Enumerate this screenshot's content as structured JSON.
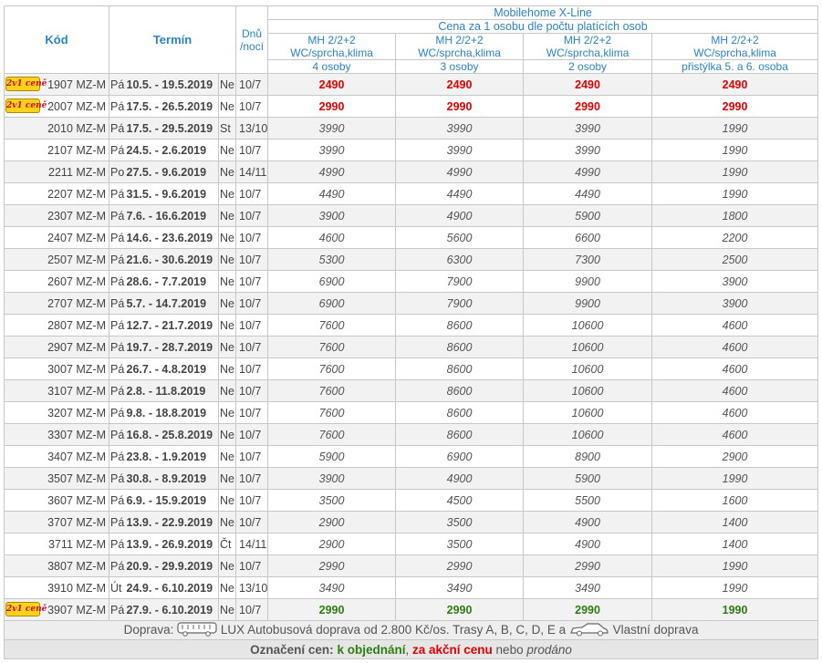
{
  "header": {
    "kod": "Kód",
    "termin": "Termín",
    "dnu_line1": "Dnů",
    "dnu_line2": "/nocí",
    "product": "Mobilehome X-Line",
    "subtitle": "Cena za 1 osobu dle počtu platících osob",
    "columns": [
      {
        "l1": "MH 2/2+2",
        "l2": "WC/sprcha,klima",
        "persons": "4 osoby"
      },
      {
        "l1": "MH 2/2+2",
        "l2": "WC/sprcha,klima",
        "persons": "3 osoby"
      },
      {
        "l1": "MH 2/2+2",
        "l2": "WC/sprcha,klima",
        "persons": "2 osoby"
      },
      {
        "l1": "MH 2/2+2",
        "l2": "WC/sprcha,klima",
        "persons": "přistýlka 5. a 6. osoba"
      }
    ]
  },
  "badge_text": "2v1 ceně",
  "rows": [
    {
      "badge": true,
      "code": "1907 MZ-M",
      "day": "Pá",
      "dates": "10.5. - 19.5.2019",
      "end": "Ne",
      "len": "10/7",
      "status": "red",
      "prices": [
        "2490",
        "2490",
        "2490",
        "2490"
      ]
    },
    {
      "badge": true,
      "code": "2007 MZ-M",
      "day": "Pá",
      "dates": "17.5. - 26.5.2019",
      "end": "Ne",
      "len": "10/7",
      "status": "red",
      "prices": [
        "2990",
        "2990",
        "2990",
        "2990"
      ]
    },
    {
      "badge": false,
      "code": "2010 MZ-M",
      "day": "Pá",
      "dates": "17.5. - 29.5.2019",
      "end": "St",
      "len": "13/10",
      "status": "sold",
      "prices": [
        "3990",
        "3990",
        "3990",
        "1990"
      ]
    },
    {
      "badge": false,
      "code": "2107 MZ-M",
      "day": "Pá",
      "dates": "24.5. - 2.6.2019",
      "end": "Ne",
      "len": "10/7",
      "status": "sold",
      "prices": [
        "3990",
        "3990",
        "3990",
        "1990"
      ]
    },
    {
      "badge": false,
      "code": "2211 MZ-M",
      "day": "Po",
      "dates": "27.5. - 9.6.2019",
      "end": "Ne",
      "len": "14/11",
      "status": "sold",
      "prices": [
        "4990",
        "4990",
        "4990",
        "1990"
      ]
    },
    {
      "badge": false,
      "code": "2207 MZ-M",
      "day": "Pá",
      "dates": "31.5. - 9.6.2019",
      "end": "Ne",
      "len": "10/7",
      "status": "sold",
      "prices": [
        "4490",
        "4490",
        "4490",
        "1990"
      ]
    },
    {
      "badge": false,
      "code": "2307 MZ-M",
      "day": "Pá",
      "dates": "7.6. - 16.6.2019",
      "end": "Ne",
      "len": "10/7",
      "status": "sold",
      "prices": [
        "3900",
        "4900",
        "5900",
        "1800"
      ]
    },
    {
      "badge": false,
      "code": "2407 MZ-M",
      "day": "Pá",
      "dates": "14.6. - 23.6.2019",
      "end": "Ne",
      "len": "10/7",
      "status": "sold",
      "prices": [
        "4600",
        "5600",
        "6600",
        "2200"
      ]
    },
    {
      "badge": false,
      "code": "2507 MZ-M",
      "day": "Pá",
      "dates": "21.6. - 30.6.2019",
      "end": "Ne",
      "len": "10/7",
      "status": "sold",
      "prices": [
        "5300",
        "6300",
        "7300",
        "2500"
      ]
    },
    {
      "badge": false,
      "code": "2607 MZ-M",
      "day": "Pá",
      "dates": "28.6. - 7.7.2019",
      "end": "Ne",
      "len": "10/7",
      "status": "sold",
      "prices": [
        "6900",
        "7900",
        "9900",
        "3900"
      ]
    },
    {
      "badge": false,
      "code": "2707 MZ-M",
      "day": "Pá",
      "dates": "5.7. - 14.7.2019",
      "end": "Ne",
      "len": "10/7",
      "status": "sold",
      "prices": [
        "6900",
        "7900",
        "9900",
        "3900"
      ]
    },
    {
      "badge": false,
      "code": "2807 MZ-M",
      "day": "Pá",
      "dates": "12.7. - 21.7.2019",
      "end": "Ne",
      "len": "10/7",
      "status": "sold",
      "prices": [
        "7600",
        "8600",
        "10600",
        "4600"
      ]
    },
    {
      "badge": false,
      "code": "2907 MZ-M",
      "day": "Pá",
      "dates": "19.7. - 28.7.2019",
      "end": "Ne",
      "len": "10/7",
      "status": "sold",
      "prices": [
        "7600",
        "8600",
        "10600",
        "4600"
      ]
    },
    {
      "badge": false,
      "code": "3007 MZ-M",
      "day": "Pá",
      "dates": "26.7. - 4.8.2019",
      "end": "Ne",
      "len": "10/7",
      "status": "sold",
      "prices": [
        "7600",
        "8600",
        "10600",
        "4600"
      ]
    },
    {
      "badge": false,
      "code": "3107 MZ-M",
      "day": "Pá",
      "dates": "2.8. - 11.8.2019",
      "end": "Ne",
      "len": "10/7",
      "status": "sold",
      "prices": [
        "7600",
        "8600",
        "10600",
        "4600"
      ]
    },
    {
      "badge": false,
      "code": "3207 MZ-M",
      "day": "Pá",
      "dates": "9.8. - 18.8.2019",
      "end": "Ne",
      "len": "10/7",
      "status": "sold",
      "prices": [
        "7600",
        "8600",
        "10600",
        "4600"
      ]
    },
    {
      "badge": false,
      "code": "3307 MZ-M",
      "day": "Pá",
      "dates": "16.8. - 25.8.2019",
      "end": "Ne",
      "len": "10/7",
      "status": "sold",
      "prices": [
        "7600",
        "8600",
        "10600",
        "4600"
      ]
    },
    {
      "badge": false,
      "code": "3407 MZ-M",
      "day": "Pá",
      "dates": "23.8. - 1.9.2019",
      "end": "Ne",
      "len": "10/7",
      "status": "sold",
      "prices": [
        "5900",
        "6900",
        "8900",
        "2900"
      ]
    },
    {
      "badge": false,
      "code": "3507 MZ-M",
      "day": "Pá",
      "dates": "30.8. - 8.9.2019",
      "end": "Ne",
      "len": "10/7",
      "status": "sold",
      "prices": [
        "3900",
        "4900",
        "5900",
        "1990"
      ]
    },
    {
      "badge": false,
      "code": "3607 MZ-M",
      "day": "Pá",
      "dates": "6.9. - 15.9.2019",
      "end": "Ne",
      "len": "10/7",
      "status": "sold",
      "prices": [
        "3500",
        "4500",
        "5500",
        "1600"
      ]
    },
    {
      "badge": false,
      "code": "3707 MZ-M",
      "day": "Pá",
      "dates": "13.9. - 22.9.2019",
      "end": "Ne",
      "len": "10/7",
      "status": "sold",
      "prices": [
        "2900",
        "3500",
        "4900",
        "1400"
      ]
    },
    {
      "badge": false,
      "code": "3711 MZ-M",
      "day": "Pá",
      "dates": "13.9. - 26.9.2019",
      "end": "Čt",
      "len": "14/11",
      "status": "sold",
      "prices": [
        "2900",
        "3500",
        "4900",
        "1400"
      ]
    },
    {
      "badge": false,
      "code": "3807 MZ-M",
      "day": "Pá",
      "dates": "20.9. - 29.9.2019",
      "end": "Ne",
      "len": "10/7",
      "status": "sold",
      "prices": [
        "2990",
        "2990",
        "2990",
        "1990"
      ]
    },
    {
      "badge": false,
      "code": "3910 MZ-M",
      "day": "Út",
      "dates": "24.9. - 6.10.2019",
      "end": "Ne",
      "len": "13/10",
      "status": "sold",
      "prices": [
        "3490",
        "3490",
        "3490",
        "1990"
      ]
    },
    {
      "badge": true,
      "code": "3907 MZ-M",
      "day": "Pá",
      "dates": "27.9. - 6.10.2019",
      "end": "Ne",
      "len": "10/7",
      "status": "green",
      "prices": [
        "2990",
        "2990",
        "2990",
        "1990"
      ]
    }
  ],
  "footer": {
    "transport_prefix": "Doprava:",
    "transport_text": "LUX Autobusová doprava od 2.800 Kč/os. Trasy A, B, C, D, E a",
    "own_transport": "Vlastní doprava",
    "legend_prefix": "Označení cen:",
    "legend_order": "k objednání",
    "legend_sep": ",",
    "legend_action": "za akční cenu",
    "legend_or": "nebo",
    "legend_sold": "prodáno"
  },
  "icons": {
    "bus": "bus-icon",
    "car": "car-icon"
  },
  "colors": {
    "header_blue": "#2a84c6",
    "action_red": "#e00000",
    "order_green": "#2e7d11"
  }
}
